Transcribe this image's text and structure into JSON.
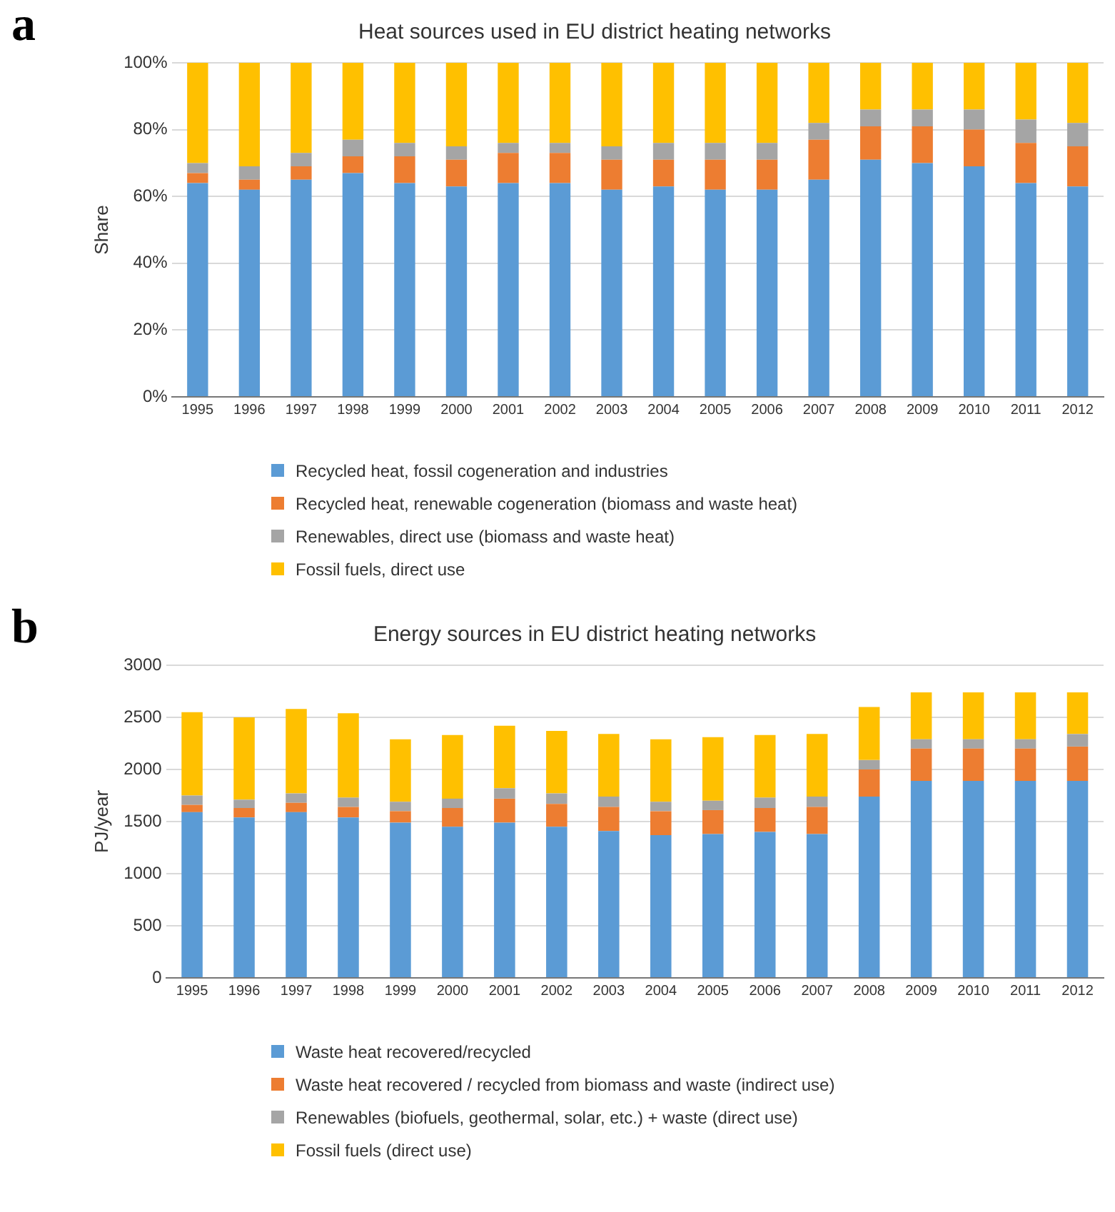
{
  "chart_data": [
    {
      "type": "bar",
      "title": "Heat sources used in EU district heating networks",
      "ylabel": "Share",
      "annotations": [
        "a"
      ],
      "stacked": true,
      "grid": "y",
      "legend": "bottom",
      "categories": [
        "1995",
        "1996",
        "1997",
        "1998",
        "1999",
        "2000",
        "2001",
        "2002",
        "2003",
        "2004",
        "2005",
        "2006",
        "2007",
        "2008",
        "2009",
        "2010",
        "2011",
        "2012"
      ],
      "ylim": [
        0,
        100
      ],
      "yticks": [
        {
          "value": 0,
          "label": "0%"
        },
        {
          "value": 20,
          "label": "20%"
        },
        {
          "value": 40,
          "label": "40%"
        },
        {
          "value": 60,
          "label": "60%"
        },
        {
          "value": 80,
          "label": "80%"
        },
        {
          "value": 100,
          "label": "100%"
        }
      ],
      "series": [
        {
          "name": "Recycled heat, fossil cogeneration and industries",
          "color": "#5b9bd5",
          "values": [
            64,
            62,
            65,
            67,
            64,
            63,
            64,
            64,
            62,
            63,
            62,
            62,
            65,
            71,
            70,
            69,
            64,
            63
          ]
        },
        {
          "name": "Recycled heat, renewable cogeneration (biomass and waste heat)",
          "color": "#ed7d31",
          "values": [
            3,
            3,
            4,
            5,
            8,
            8,
            9,
            9,
            9,
            8,
            9,
            9,
            12,
            10,
            11,
            11,
            12,
            12
          ]
        },
        {
          "name": "Renewables, direct use (biomass and waste heat)",
          "color": "#a5a5a5",
          "values": [
            3,
            4,
            4,
            5,
            4,
            4,
            3,
            3,
            4,
            5,
            5,
            5,
            5,
            5,
            5,
            6,
            7,
            7
          ]
        },
        {
          "name": "Fossil fuels, direct use",
          "color": "#ffc000",
          "values": [
            30,
            31,
            27,
            23,
            24,
            25,
            24,
            24,
            25,
            24,
            24,
            24,
            18,
            14,
            14,
            14,
            17,
            18
          ]
        }
      ]
    },
    {
      "type": "bar",
      "title": "Energy sources in EU district heating networks",
      "ylabel": "PJ/year",
      "annotations": [
        "b"
      ],
      "stacked": true,
      "grid": "y",
      "legend": "bottom",
      "categories": [
        "1995",
        "1996",
        "1997",
        "1998",
        "1999",
        "2000",
        "2001",
        "2002",
        "2003",
        "2004",
        "2005",
        "2006",
        "2007",
        "2008",
        "2009",
        "2010",
        "2011",
        "2012"
      ],
      "ylim": [
        0,
        3000
      ],
      "yticks": [
        0,
        500,
        1000,
        1500,
        2000,
        2500,
        3000
      ],
      "series": [
        {
          "name": "Waste heat recovered/recycled",
          "color": "#5b9bd5",
          "values": [
            1590,
            1540,
            1590,
            1540,
            1490,
            1450,
            1490,
            1450,
            1410,
            1370,
            1380,
            1400,
            1380,
            1740,
            1890,
            1890,
            1890,
            1890
          ]
        },
        {
          "name": "Waste heat recovered / recycled from biomass and waste (indirect use)",
          "color": "#ed7d31",
          "values": [
            70,
            90,
            90,
            100,
            110,
            180,
            230,
            220,
            230,
            230,
            230,
            230,
            260,
            260,
            310,
            310,
            310,
            330
          ]
        },
        {
          "name": "Renewables (biofuels, geothermal, solar, etc.) + waste (direct use)",
          "color": "#a5a5a5",
          "values": [
            90,
            80,
            90,
            90,
            90,
            90,
            100,
            100,
            100,
            90,
            90,
            100,
            100,
            90,
            90,
            90,
            90,
            120
          ]
        },
        {
          "name": "Fossil fuels (direct use)",
          "color": "#ffc000",
          "values": [
            800,
            790,
            810,
            810,
            600,
            610,
            600,
            600,
            600,
            600,
            610,
            600,
            600,
            510,
            450,
            450,
            450,
            400
          ]
        }
      ]
    }
  ]
}
